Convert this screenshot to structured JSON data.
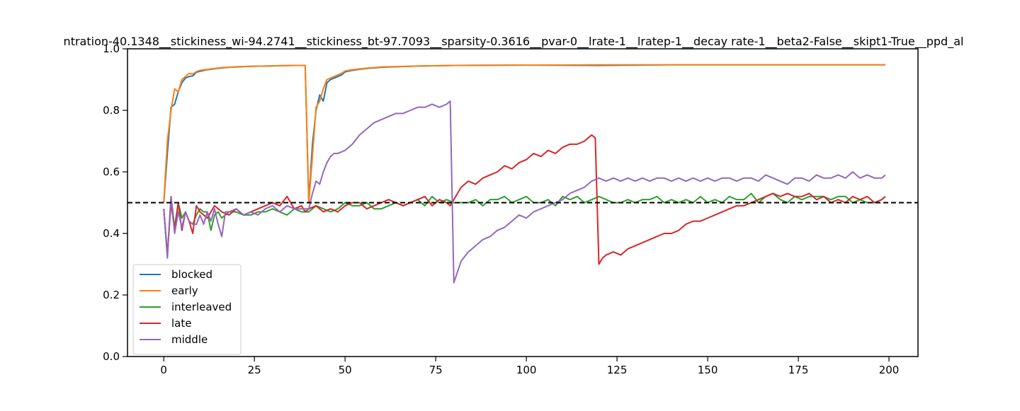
{
  "chart_data": {
    "type": "line",
    "title": "ntration-40.1348__stickiness_wi-94.2741__stickiness_bt-97.7093__sparsity-0.3616__pvar-0__lrate-1__lratep-1__decay rate-1__beta2-False__skipt1-True__ppd_al",
    "xlabel": "",
    "ylabel": "",
    "xlim": [
      -10,
      208
    ],
    "ylim": [
      0.0,
      1.0
    ],
    "x_ticks": [
      0,
      25,
      50,
      75,
      100,
      125,
      150,
      175,
      200
    ],
    "y_ticks": [
      0.0,
      0.2,
      0.4,
      0.6,
      0.8,
      1.0
    ],
    "y_tick_labels": [
      "0.0",
      "0.2",
      "0.4",
      "0.6",
      "0.8",
      "1.0"
    ],
    "grid": false,
    "legend_position": "lower-left",
    "reference_line": {
      "y": 0.5,
      "style": "dashed",
      "color": "#000000"
    },
    "series": [
      {
        "name": "blocked",
        "color": "#1f77b4",
        "x": [
          0,
          1,
          2,
          3,
          4,
          5,
          6,
          7,
          8,
          9,
          10,
          12,
          14,
          16,
          18,
          20,
          24,
          28,
          32,
          36,
          39,
          40,
          41,
          42,
          43,
          44,
          45,
          46,
          47,
          48,
          49,
          50,
          52,
          55,
          60,
          70,
          80,
          100,
          120,
          140,
          160,
          180,
          199
        ],
        "y": [
          0.5,
          0.66,
          0.81,
          0.82,
          0.86,
          0.89,
          0.905,
          0.91,
          0.912,
          0.924,
          0.927,
          0.932,
          0.935,
          0.938,
          0.94,
          0.941,
          0.943,
          0.944,
          0.945,
          0.946,
          0.946,
          0.5,
          0.69,
          0.8,
          0.85,
          0.83,
          0.89,
          0.9,
          0.905,
          0.91,
          0.915,
          0.925,
          0.93,
          0.935,
          0.94,
          0.944,
          0.946,
          0.947,
          0.946,
          0.948,
          0.948,
          0.948,
          0.948
        ]
      },
      {
        "name": "early",
        "color": "#ff7f0e",
        "x": [
          0,
          1,
          2,
          3,
          4,
          5,
          6,
          7,
          8,
          9,
          10,
          12,
          14,
          16,
          18,
          20,
          24,
          28,
          32,
          36,
          39,
          40,
          41,
          42,
          43,
          44,
          45,
          46,
          47,
          48,
          49,
          50,
          52,
          55,
          60,
          70,
          80,
          100,
          120,
          140,
          160,
          180,
          199
        ],
        "y": [
          0.5,
          0.7,
          0.8,
          0.87,
          0.86,
          0.9,
          0.91,
          0.92,
          0.918,
          0.926,
          0.93,
          0.933,
          0.936,
          0.939,
          0.94,
          0.942,
          0.943,
          0.944,
          0.945,
          0.946,
          0.946,
          0.5,
          0.65,
          0.81,
          0.83,
          0.87,
          0.9,
          0.905,
          0.91,
          0.915,
          0.92,
          0.928,
          0.932,
          0.936,
          0.941,
          0.944,
          0.946,
          0.947,
          0.948,
          0.948,
          0.948,
          0.948,
          0.948
        ]
      },
      {
        "name": "interleaved",
        "color": "#2ca02c",
        "x": [
          0,
          1,
          2,
          3,
          4,
          5,
          6,
          7,
          8,
          9,
          10,
          11,
          12,
          13,
          14,
          15,
          16,
          18,
          20,
          22,
          24,
          26,
          28,
          30,
          32,
          34,
          36,
          38,
          40,
          42,
          44,
          46,
          48,
          50,
          52,
          54,
          56,
          58,
          60,
          62,
          64,
          66,
          68,
          70,
          72,
          74,
          76,
          78,
          80,
          82,
          84,
          86,
          88,
          90,
          92,
          94,
          96,
          98,
          100,
          102,
          104,
          106,
          108,
          110,
          112,
          114,
          116,
          118,
          120,
          122,
          124,
          126,
          128,
          130,
          132,
          134,
          136,
          138,
          140,
          142,
          144,
          146,
          148,
          150,
          152,
          154,
          156,
          158,
          160,
          162,
          164,
          166,
          168,
          170,
          172,
          174,
          176,
          178,
          180,
          182,
          184,
          186,
          188,
          190,
          192,
          194,
          196,
          198,
          199
        ],
        "y": [
          0.48,
          0.33,
          0.52,
          0.42,
          0.5,
          0.45,
          0.47,
          0.44,
          0.43,
          0.46,
          0.48,
          0.47,
          0.47,
          0.41,
          0.46,
          0.47,
          0.45,
          0.47,
          0.47,
          0.46,
          0.46,
          0.47,
          0.47,
          0.48,
          0.47,
          0.46,
          0.48,
          0.47,
          0.47,
          0.49,
          0.48,
          0.47,
          0.48,
          0.5,
          0.49,
          0.49,
          0.5,
          0.48,
          0.48,
          0.49,
          0.5,
          0.49,
          0.5,
          0.51,
          0.49,
          0.52,
          0.5,
          0.51,
          0.5,
          0.5,
          0.5,
          0.51,
          0.49,
          0.51,
          0.51,
          0.52,
          0.5,
          0.51,
          0.52,
          0.5,
          0.5,
          0.51,
          0.49,
          0.52,
          0.51,
          0.52,
          0.5,
          0.51,
          0.52,
          0.51,
          0.5,
          0.5,
          0.51,
          0.5,
          0.51,
          0.51,
          0.52,
          0.5,
          0.51,
          0.5,
          0.51,
          0.5,
          0.52,
          0.5,
          0.51,
          0.5,
          0.52,
          0.51,
          0.51,
          0.53,
          0.5,
          0.52,
          0.53,
          0.51,
          0.5,
          0.52,
          0.51,
          0.52,
          0.52,
          0.52,
          0.51,
          0.52,
          0.52,
          0.5,
          0.51,
          0.5,
          0.5,
          0.51,
          0.52
        ]
      },
      {
        "name": "late",
        "color": "#d62728",
        "x": [
          0,
          1,
          2,
          3,
          4,
          5,
          6,
          7,
          8,
          9,
          10,
          12,
          14,
          16,
          18,
          20,
          22,
          24,
          26,
          28,
          30,
          32,
          34,
          36,
          38,
          39,
          40,
          42,
          44,
          46,
          48,
          50,
          52,
          54,
          56,
          58,
          60,
          62,
          64,
          66,
          68,
          70,
          72,
          74,
          76,
          78,
          79,
          80,
          82,
          84,
          86,
          88,
          90,
          92,
          94,
          96,
          98,
          100,
          102,
          104,
          106,
          108,
          110,
          112,
          114,
          116,
          118,
          119,
          120,
          121,
          122,
          124,
          126,
          128,
          130,
          132,
          134,
          136,
          138,
          140,
          142,
          144,
          146,
          148,
          150,
          152,
          154,
          156,
          158,
          160,
          162,
          164,
          166,
          168,
          170,
          172,
          174,
          176,
          178,
          180,
          182,
          184,
          186,
          188,
          190,
          192,
          194,
          196,
          198,
          199
        ],
        "y": [
          0.48,
          0.33,
          0.5,
          0.41,
          0.5,
          0.41,
          0.47,
          0.44,
          0.4,
          0.49,
          0.47,
          0.45,
          0.49,
          0.47,
          0.46,
          0.48,
          0.46,
          0.47,
          0.48,
          0.49,
          0.5,
          0.49,
          0.52,
          0.48,
          0.49,
          0.47,
          0.48,
          0.49,
          0.47,
          0.48,
          0.47,
          0.49,
          0.5,
          0.5,
          0.48,
          0.49,
          0.5,
          0.51,
          0.5,
          0.49,
          0.5,
          0.51,
          0.52,
          0.49,
          0.51,
          0.5,
          0.49,
          0.51,
          0.55,
          0.57,
          0.56,
          0.58,
          0.59,
          0.6,
          0.62,
          0.61,
          0.63,
          0.64,
          0.66,
          0.65,
          0.67,
          0.66,
          0.68,
          0.69,
          0.69,
          0.7,
          0.72,
          0.71,
          0.3,
          0.32,
          0.33,
          0.34,
          0.33,
          0.35,
          0.36,
          0.37,
          0.38,
          0.39,
          0.4,
          0.4,
          0.41,
          0.43,
          0.44,
          0.44,
          0.45,
          0.46,
          0.47,
          0.48,
          0.49,
          0.49,
          0.5,
          0.51,
          0.52,
          0.53,
          0.52,
          0.53,
          0.52,
          0.52,
          0.53,
          0.51,
          0.52,
          0.5,
          0.51,
          0.5,
          0.52,
          0.51,
          0.52,
          0.5,
          0.51,
          0.52
        ]
      },
      {
        "name": "middle",
        "color": "#9467bd",
        "x": [
          0,
          1,
          2,
          3,
          4,
          5,
          6,
          7,
          8,
          9,
          10,
          11,
          12,
          13,
          14,
          15,
          16,
          17,
          18,
          20,
          22,
          24,
          26,
          28,
          30,
          32,
          34,
          36,
          38,
          40,
          41,
          42,
          43,
          44,
          45,
          46,
          47,
          48,
          50,
          52,
          54,
          56,
          58,
          60,
          62,
          64,
          66,
          68,
          70,
          72,
          74,
          76,
          78,
          79,
          80,
          82,
          84,
          86,
          88,
          90,
          92,
          94,
          96,
          98,
          100,
          102,
          104,
          106,
          108,
          110,
          112,
          114,
          116,
          118,
          120,
          122,
          124,
          126,
          128,
          130,
          132,
          134,
          136,
          138,
          140,
          142,
          144,
          146,
          148,
          150,
          152,
          154,
          156,
          158,
          160,
          162,
          164,
          166,
          168,
          170,
          172,
          174,
          176,
          178,
          180,
          182,
          184,
          186,
          188,
          190,
          192,
          194,
          196,
          198,
          199
        ],
        "y": [
          0.48,
          0.32,
          0.52,
          0.4,
          0.47,
          0.42,
          0.47,
          0.44,
          0.43,
          0.43,
          0.46,
          0.43,
          0.47,
          0.44,
          0.48,
          0.43,
          0.39,
          0.47,
          0.47,
          0.48,
          0.46,
          0.47,
          0.46,
          0.48,
          0.49,
          0.47,
          0.49,
          0.48,
          0.48,
          0.48,
          0.53,
          0.57,
          0.56,
          0.6,
          0.63,
          0.65,
          0.66,
          0.66,
          0.67,
          0.69,
          0.72,
          0.74,
          0.76,
          0.77,
          0.78,
          0.79,
          0.79,
          0.8,
          0.81,
          0.81,
          0.82,
          0.81,
          0.82,
          0.83,
          0.24,
          0.31,
          0.34,
          0.36,
          0.38,
          0.39,
          0.41,
          0.42,
          0.44,
          0.46,
          0.45,
          0.47,
          0.48,
          0.49,
          0.5,
          0.51,
          0.53,
          0.54,
          0.55,
          0.57,
          0.58,
          0.57,
          0.58,
          0.57,
          0.58,
          0.57,
          0.58,
          0.57,
          0.58,
          0.58,
          0.57,
          0.58,
          0.57,
          0.58,
          0.57,
          0.58,
          0.57,
          0.58,
          0.58,
          0.57,
          0.58,
          0.58,
          0.57,
          0.59,
          0.58,
          0.57,
          0.56,
          0.58,
          0.58,
          0.57,
          0.59,
          0.58,
          0.58,
          0.59,
          0.58,
          0.6,
          0.58,
          0.59,
          0.58,
          0.58,
          0.59
        ]
      }
    ]
  }
}
